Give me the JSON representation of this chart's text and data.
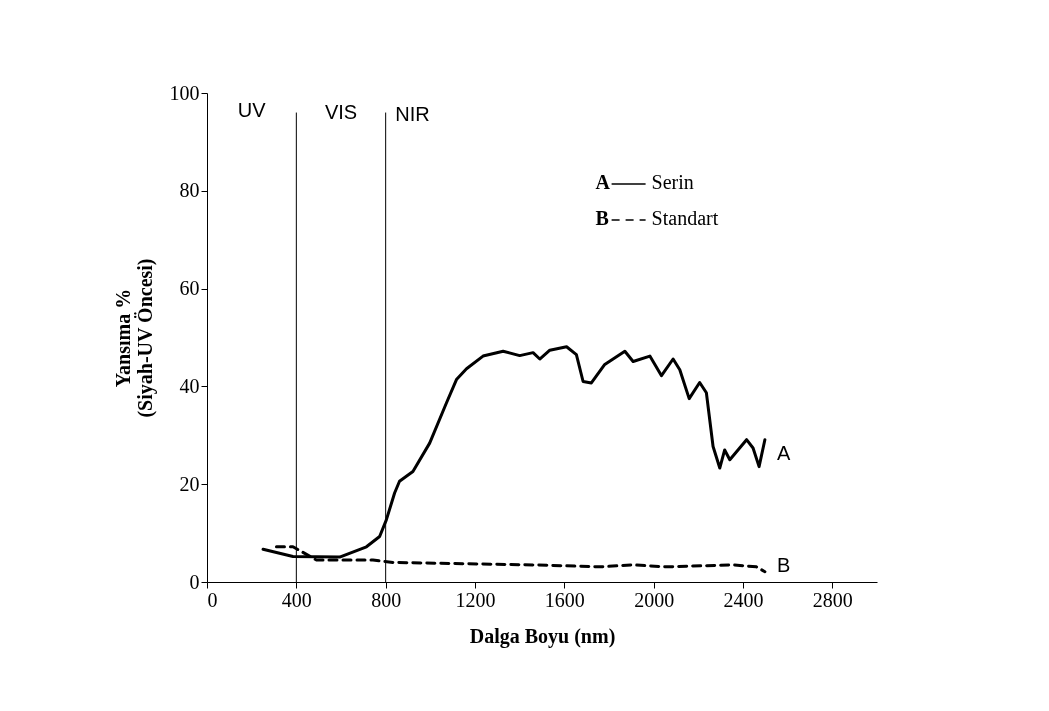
{
  "chart_data": {
    "type": "line",
    "xlabel": "Dalga Boyu (nm)",
    "ylabel": "Yansıma %\n(Siyah-UV Öncesi)",
    "xlim": [
      0,
      3000
    ],
    "xticks": [
      0,
      400,
      800,
      1200,
      1600,
      2000,
      2400,
      2800
    ],
    "ylim": [
      0,
      100
    ],
    "yticks": [
      0,
      20,
      40,
      60,
      80,
      100
    ],
    "grid": false,
    "legend": "top right",
    "series": [
      {
        "name": "Serin",
        "color": "#000000",
        "line_style": "solid",
        "x": [
          251,
          385,
          594,
          714,
          773,
          803,
          840,
          862,
          922,
          997,
          1072,
          1117,
          1162,
          1236,
          1326,
          1400,
          1460,
          1490,
          1535,
          1610,
          1654,
          1684,
          1721,
          1781,
          1871,
          1908,
          1983,
          2035,
          2087,
          2117,
          2159,
          2206,
          2236,
          2266,
          2296,
          2318,
          2341,
          2416,
          2445,
          2472,
          2498
        ],
        "values": [
          6.7,
          5.2,
          5.1,
          7.2,
          9.3,
          12.7,
          18.2,
          20.6,
          22.6,
          28.4,
          36.6,
          41.4,
          43.6,
          46.2,
          47.2,
          46.3,
          46.9,
          45.6,
          47.4,
          48.1,
          46.5,
          41,
          40.7,
          44.5,
          47.2,
          45.1,
          46.2,
          42.2,
          45.6,
          43.4,
          37.5,
          40.8,
          38.7,
          27.7,
          23.3,
          27,
          25,
          29.1,
          27.4,
          23.6,
          29.1
        ]
      },
      {
        "name": "Standart",
        "color": "#000000",
        "line_style": "dashed",
        "x": [
          311,
          385,
          490,
          743,
          833,
          1460,
          1759,
          1907,
          2057,
          2356,
          2460,
          2498
        ],
        "values": [
          7.2,
          7.2,
          4.5,
          4.5,
          4.0,
          3.5,
          3.1,
          3.5,
          3.1,
          3.5,
          3.1,
          2.1
        ]
      }
    ],
    "ref_lines": [
      {
        "axis": "x",
        "value": 400,
        "color": "#000000"
      },
      {
        "axis": "x",
        "value": 800,
        "color": "#000000"
      }
    ],
    "annotations": [
      "UV",
      "VIS",
      "NIR",
      "A",
      "B"
    ]
  }
}
